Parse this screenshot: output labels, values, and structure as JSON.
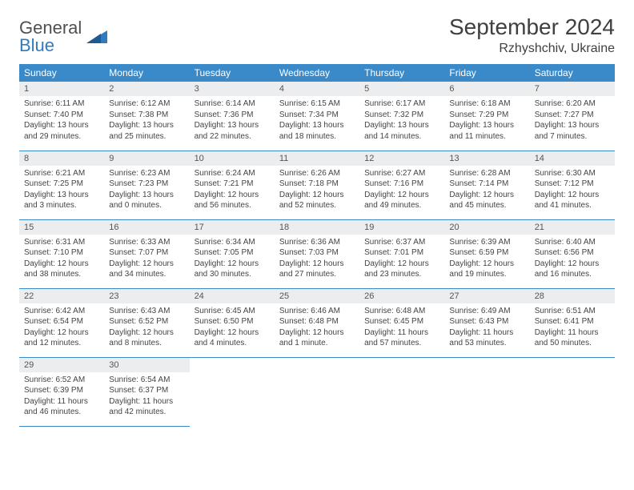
{
  "brand": {
    "line1": "General",
    "line2": "Blue"
  },
  "title": {
    "month": "September 2024",
    "location": "Rzhyshchiv, Ukraine"
  },
  "weekdays": [
    "Sunday",
    "Monday",
    "Tuesday",
    "Wednesday",
    "Thursday",
    "Friday",
    "Saturday"
  ],
  "colors": {
    "header_bg": "#3a8ac9",
    "header_fg": "#ffffff",
    "daynum_bg": "#ebedef",
    "rule": "#3a8ac9",
    "text": "#444444",
    "logo_gray": "#505050",
    "logo_blue": "#2f7bbf"
  },
  "days": [
    {
      "n": "1",
      "sr": "Sunrise: 6:11 AM",
      "ss": "Sunset: 7:40 PM",
      "dl1": "Daylight: 13 hours",
      "dl2": "and 29 minutes."
    },
    {
      "n": "2",
      "sr": "Sunrise: 6:12 AM",
      "ss": "Sunset: 7:38 PM",
      "dl1": "Daylight: 13 hours",
      "dl2": "and 25 minutes."
    },
    {
      "n": "3",
      "sr": "Sunrise: 6:14 AM",
      "ss": "Sunset: 7:36 PM",
      "dl1": "Daylight: 13 hours",
      "dl2": "and 22 minutes."
    },
    {
      "n": "4",
      "sr": "Sunrise: 6:15 AM",
      "ss": "Sunset: 7:34 PM",
      "dl1": "Daylight: 13 hours",
      "dl2": "and 18 minutes."
    },
    {
      "n": "5",
      "sr": "Sunrise: 6:17 AM",
      "ss": "Sunset: 7:32 PM",
      "dl1": "Daylight: 13 hours",
      "dl2": "and 14 minutes."
    },
    {
      "n": "6",
      "sr": "Sunrise: 6:18 AM",
      "ss": "Sunset: 7:29 PM",
      "dl1": "Daylight: 13 hours",
      "dl2": "and 11 minutes."
    },
    {
      "n": "7",
      "sr": "Sunrise: 6:20 AM",
      "ss": "Sunset: 7:27 PM",
      "dl1": "Daylight: 13 hours",
      "dl2": "and 7 minutes."
    },
    {
      "n": "8",
      "sr": "Sunrise: 6:21 AM",
      "ss": "Sunset: 7:25 PM",
      "dl1": "Daylight: 13 hours",
      "dl2": "and 3 minutes."
    },
    {
      "n": "9",
      "sr": "Sunrise: 6:23 AM",
      "ss": "Sunset: 7:23 PM",
      "dl1": "Daylight: 13 hours",
      "dl2": "and 0 minutes."
    },
    {
      "n": "10",
      "sr": "Sunrise: 6:24 AM",
      "ss": "Sunset: 7:21 PM",
      "dl1": "Daylight: 12 hours",
      "dl2": "and 56 minutes."
    },
    {
      "n": "11",
      "sr": "Sunrise: 6:26 AM",
      "ss": "Sunset: 7:18 PM",
      "dl1": "Daylight: 12 hours",
      "dl2": "and 52 minutes."
    },
    {
      "n": "12",
      "sr": "Sunrise: 6:27 AM",
      "ss": "Sunset: 7:16 PM",
      "dl1": "Daylight: 12 hours",
      "dl2": "and 49 minutes."
    },
    {
      "n": "13",
      "sr": "Sunrise: 6:28 AM",
      "ss": "Sunset: 7:14 PM",
      "dl1": "Daylight: 12 hours",
      "dl2": "and 45 minutes."
    },
    {
      "n": "14",
      "sr": "Sunrise: 6:30 AM",
      "ss": "Sunset: 7:12 PM",
      "dl1": "Daylight: 12 hours",
      "dl2": "and 41 minutes."
    },
    {
      "n": "15",
      "sr": "Sunrise: 6:31 AM",
      "ss": "Sunset: 7:10 PM",
      "dl1": "Daylight: 12 hours",
      "dl2": "and 38 minutes."
    },
    {
      "n": "16",
      "sr": "Sunrise: 6:33 AM",
      "ss": "Sunset: 7:07 PM",
      "dl1": "Daylight: 12 hours",
      "dl2": "and 34 minutes."
    },
    {
      "n": "17",
      "sr": "Sunrise: 6:34 AM",
      "ss": "Sunset: 7:05 PM",
      "dl1": "Daylight: 12 hours",
      "dl2": "and 30 minutes."
    },
    {
      "n": "18",
      "sr": "Sunrise: 6:36 AM",
      "ss": "Sunset: 7:03 PM",
      "dl1": "Daylight: 12 hours",
      "dl2": "and 27 minutes."
    },
    {
      "n": "19",
      "sr": "Sunrise: 6:37 AM",
      "ss": "Sunset: 7:01 PM",
      "dl1": "Daylight: 12 hours",
      "dl2": "and 23 minutes."
    },
    {
      "n": "20",
      "sr": "Sunrise: 6:39 AM",
      "ss": "Sunset: 6:59 PM",
      "dl1": "Daylight: 12 hours",
      "dl2": "and 19 minutes."
    },
    {
      "n": "21",
      "sr": "Sunrise: 6:40 AM",
      "ss": "Sunset: 6:56 PM",
      "dl1": "Daylight: 12 hours",
      "dl2": "and 16 minutes."
    },
    {
      "n": "22",
      "sr": "Sunrise: 6:42 AM",
      "ss": "Sunset: 6:54 PM",
      "dl1": "Daylight: 12 hours",
      "dl2": "and 12 minutes."
    },
    {
      "n": "23",
      "sr": "Sunrise: 6:43 AM",
      "ss": "Sunset: 6:52 PM",
      "dl1": "Daylight: 12 hours",
      "dl2": "and 8 minutes."
    },
    {
      "n": "24",
      "sr": "Sunrise: 6:45 AM",
      "ss": "Sunset: 6:50 PM",
      "dl1": "Daylight: 12 hours",
      "dl2": "and 4 minutes."
    },
    {
      "n": "25",
      "sr": "Sunrise: 6:46 AM",
      "ss": "Sunset: 6:48 PM",
      "dl1": "Daylight: 12 hours",
      "dl2": "and 1 minute."
    },
    {
      "n": "26",
      "sr": "Sunrise: 6:48 AM",
      "ss": "Sunset: 6:45 PM",
      "dl1": "Daylight: 11 hours",
      "dl2": "and 57 minutes."
    },
    {
      "n": "27",
      "sr": "Sunrise: 6:49 AM",
      "ss": "Sunset: 6:43 PM",
      "dl1": "Daylight: 11 hours",
      "dl2": "and 53 minutes."
    },
    {
      "n": "28",
      "sr": "Sunrise: 6:51 AM",
      "ss": "Sunset: 6:41 PM",
      "dl1": "Daylight: 11 hours",
      "dl2": "and 50 minutes."
    },
    {
      "n": "29",
      "sr": "Sunrise: 6:52 AM",
      "ss": "Sunset: 6:39 PM",
      "dl1": "Daylight: 11 hours",
      "dl2": "and 46 minutes."
    },
    {
      "n": "30",
      "sr": "Sunrise: 6:54 AM",
      "ss": "Sunset: 6:37 PM",
      "dl1": "Daylight: 11 hours",
      "dl2": "and 42 minutes."
    }
  ]
}
